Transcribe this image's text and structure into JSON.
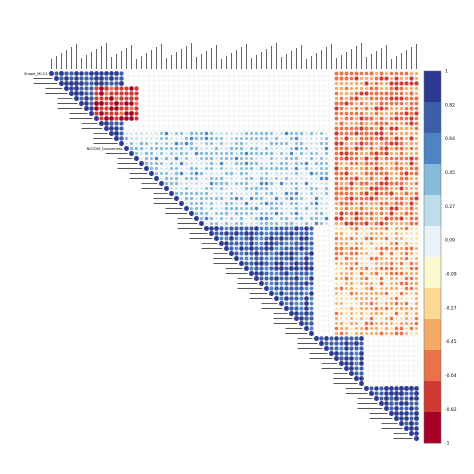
{
  "chart_data": {
    "type": "heatmap",
    "subtype": "upper-triangular correlation matrix (corrplot, method=circle)",
    "title": "",
    "variable_count": 74,
    "row_labels_legible": [
      "Shape_MCCS",
      "NGTDM_Coarseness"
    ],
    "scale": {
      "min": -1,
      "max": 1,
      "ticks": [
        "1",
        "0.82",
        "0.64",
        "0.45",
        "0.27",
        "0.09",
        "-0.09",
        "-0.27",
        "-0.45",
        "-0.64",
        "-0.82",
        "-1"
      ],
      "colors_high_to_low": [
        "#2b3990",
        "#3d5fa8",
        "#4f84c4",
        "#86bbdb",
        "#bfdceb",
        "#e9f4f8",
        "#fcf9cf",
        "#fad995",
        "#f5ab67",
        "#e9724a",
        "#cf3a32",
        "#a50026"
      ]
    },
    "blocks_approx": [
      {
        "rows": [
          0,
          14
        ],
        "cols": [
          0,
          14
        ],
        "r": 0.85
      },
      {
        "rows": [
          15,
          30
        ],
        "cols": [
          15,
          30
        ],
        "r": 0.7
      },
      {
        "rows": [
          31,
          52
        ],
        "cols": [
          31,
          52
        ],
        "r": 0.75
      },
      {
        "rows": [
          53,
          62
        ],
        "cols": [
          53,
          62
        ],
        "r": 0.8
      },
      {
        "rows": [
          63,
          73
        ],
        "cols": [
          63,
          73
        ],
        "r": 0.85
      },
      {
        "rows": [
          3,
          9
        ],
        "cols": [
          9,
          17
        ],
        "r": -0.8
      },
      {
        "rows": [
          0,
          30
        ],
        "cols": [
          57,
          73
        ],
        "r": -0.55
      },
      {
        "rows": [
          12,
          30
        ],
        "cols": [
          15,
          55
        ],
        "r": 0.35
      },
      {
        "rows": [
          31,
          52
        ],
        "cols": [
          57,
          73
        ],
        "r": -0.4
      }
    ],
    "legend_position": "right",
    "grid": true
  }
}
